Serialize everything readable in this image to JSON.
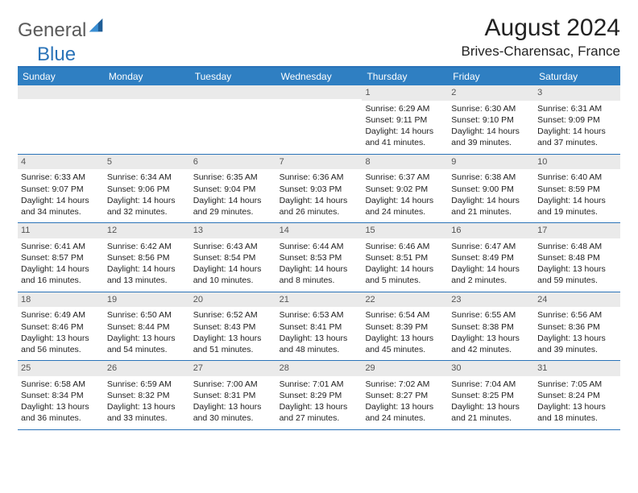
{
  "brand": {
    "part1": "General",
    "part2": "Blue"
  },
  "title": "August 2024",
  "location": "Brives-Charensac, France",
  "colors": {
    "header_bg": "#2f7fc2",
    "border": "#2a73b8",
    "daynum_bg": "#eaeaea",
    "text": "#222222",
    "logo_gray": "#5a5a5a",
    "logo_blue": "#2a73b8"
  },
  "weekdays": [
    "Sunday",
    "Monday",
    "Tuesday",
    "Wednesday",
    "Thursday",
    "Friday",
    "Saturday"
  ],
  "weeks": [
    [
      {
        "n": "",
        "sr": "",
        "ss": "",
        "dl": ""
      },
      {
        "n": "",
        "sr": "",
        "ss": "",
        "dl": ""
      },
      {
        "n": "",
        "sr": "",
        "ss": "",
        "dl": ""
      },
      {
        "n": "",
        "sr": "",
        "ss": "",
        "dl": ""
      },
      {
        "n": "1",
        "sr": "Sunrise: 6:29 AM",
        "ss": "Sunset: 9:11 PM",
        "dl": "Daylight: 14 hours and 41 minutes."
      },
      {
        "n": "2",
        "sr": "Sunrise: 6:30 AM",
        "ss": "Sunset: 9:10 PM",
        "dl": "Daylight: 14 hours and 39 minutes."
      },
      {
        "n": "3",
        "sr": "Sunrise: 6:31 AM",
        "ss": "Sunset: 9:09 PM",
        "dl": "Daylight: 14 hours and 37 minutes."
      }
    ],
    [
      {
        "n": "4",
        "sr": "Sunrise: 6:33 AM",
        "ss": "Sunset: 9:07 PM",
        "dl": "Daylight: 14 hours and 34 minutes."
      },
      {
        "n": "5",
        "sr": "Sunrise: 6:34 AM",
        "ss": "Sunset: 9:06 PM",
        "dl": "Daylight: 14 hours and 32 minutes."
      },
      {
        "n": "6",
        "sr": "Sunrise: 6:35 AM",
        "ss": "Sunset: 9:04 PM",
        "dl": "Daylight: 14 hours and 29 minutes."
      },
      {
        "n": "7",
        "sr": "Sunrise: 6:36 AM",
        "ss": "Sunset: 9:03 PM",
        "dl": "Daylight: 14 hours and 26 minutes."
      },
      {
        "n": "8",
        "sr": "Sunrise: 6:37 AM",
        "ss": "Sunset: 9:02 PM",
        "dl": "Daylight: 14 hours and 24 minutes."
      },
      {
        "n": "9",
        "sr": "Sunrise: 6:38 AM",
        "ss": "Sunset: 9:00 PM",
        "dl": "Daylight: 14 hours and 21 minutes."
      },
      {
        "n": "10",
        "sr": "Sunrise: 6:40 AM",
        "ss": "Sunset: 8:59 PM",
        "dl": "Daylight: 14 hours and 19 minutes."
      }
    ],
    [
      {
        "n": "11",
        "sr": "Sunrise: 6:41 AM",
        "ss": "Sunset: 8:57 PM",
        "dl": "Daylight: 14 hours and 16 minutes."
      },
      {
        "n": "12",
        "sr": "Sunrise: 6:42 AM",
        "ss": "Sunset: 8:56 PM",
        "dl": "Daylight: 14 hours and 13 minutes."
      },
      {
        "n": "13",
        "sr": "Sunrise: 6:43 AM",
        "ss": "Sunset: 8:54 PM",
        "dl": "Daylight: 14 hours and 10 minutes."
      },
      {
        "n": "14",
        "sr": "Sunrise: 6:44 AM",
        "ss": "Sunset: 8:53 PM",
        "dl": "Daylight: 14 hours and 8 minutes."
      },
      {
        "n": "15",
        "sr": "Sunrise: 6:46 AM",
        "ss": "Sunset: 8:51 PM",
        "dl": "Daylight: 14 hours and 5 minutes."
      },
      {
        "n": "16",
        "sr": "Sunrise: 6:47 AM",
        "ss": "Sunset: 8:49 PM",
        "dl": "Daylight: 14 hours and 2 minutes."
      },
      {
        "n": "17",
        "sr": "Sunrise: 6:48 AM",
        "ss": "Sunset: 8:48 PM",
        "dl": "Daylight: 13 hours and 59 minutes."
      }
    ],
    [
      {
        "n": "18",
        "sr": "Sunrise: 6:49 AM",
        "ss": "Sunset: 8:46 PM",
        "dl": "Daylight: 13 hours and 56 minutes."
      },
      {
        "n": "19",
        "sr": "Sunrise: 6:50 AM",
        "ss": "Sunset: 8:44 PM",
        "dl": "Daylight: 13 hours and 54 minutes."
      },
      {
        "n": "20",
        "sr": "Sunrise: 6:52 AM",
        "ss": "Sunset: 8:43 PM",
        "dl": "Daylight: 13 hours and 51 minutes."
      },
      {
        "n": "21",
        "sr": "Sunrise: 6:53 AM",
        "ss": "Sunset: 8:41 PM",
        "dl": "Daylight: 13 hours and 48 minutes."
      },
      {
        "n": "22",
        "sr": "Sunrise: 6:54 AM",
        "ss": "Sunset: 8:39 PM",
        "dl": "Daylight: 13 hours and 45 minutes."
      },
      {
        "n": "23",
        "sr": "Sunrise: 6:55 AM",
        "ss": "Sunset: 8:38 PM",
        "dl": "Daylight: 13 hours and 42 minutes."
      },
      {
        "n": "24",
        "sr": "Sunrise: 6:56 AM",
        "ss": "Sunset: 8:36 PM",
        "dl": "Daylight: 13 hours and 39 minutes."
      }
    ],
    [
      {
        "n": "25",
        "sr": "Sunrise: 6:58 AM",
        "ss": "Sunset: 8:34 PM",
        "dl": "Daylight: 13 hours and 36 minutes."
      },
      {
        "n": "26",
        "sr": "Sunrise: 6:59 AM",
        "ss": "Sunset: 8:32 PM",
        "dl": "Daylight: 13 hours and 33 minutes."
      },
      {
        "n": "27",
        "sr": "Sunrise: 7:00 AM",
        "ss": "Sunset: 8:31 PM",
        "dl": "Daylight: 13 hours and 30 minutes."
      },
      {
        "n": "28",
        "sr": "Sunrise: 7:01 AM",
        "ss": "Sunset: 8:29 PM",
        "dl": "Daylight: 13 hours and 27 minutes."
      },
      {
        "n": "29",
        "sr": "Sunrise: 7:02 AM",
        "ss": "Sunset: 8:27 PM",
        "dl": "Daylight: 13 hours and 24 minutes."
      },
      {
        "n": "30",
        "sr": "Sunrise: 7:04 AM",
        "ss": "Sunset: 8:25 PM",
        "dl": "Daylight: 13 hours and 21 minutes."
      },
      {
        "n": "31",
        "sr": "Sunrise: 7:05 AM",
        "ss": "Sunset: 8:24 PM",
        "dl": "Daylight: 13 hours and 18 minutes."
      }
    ]
  ]
}
